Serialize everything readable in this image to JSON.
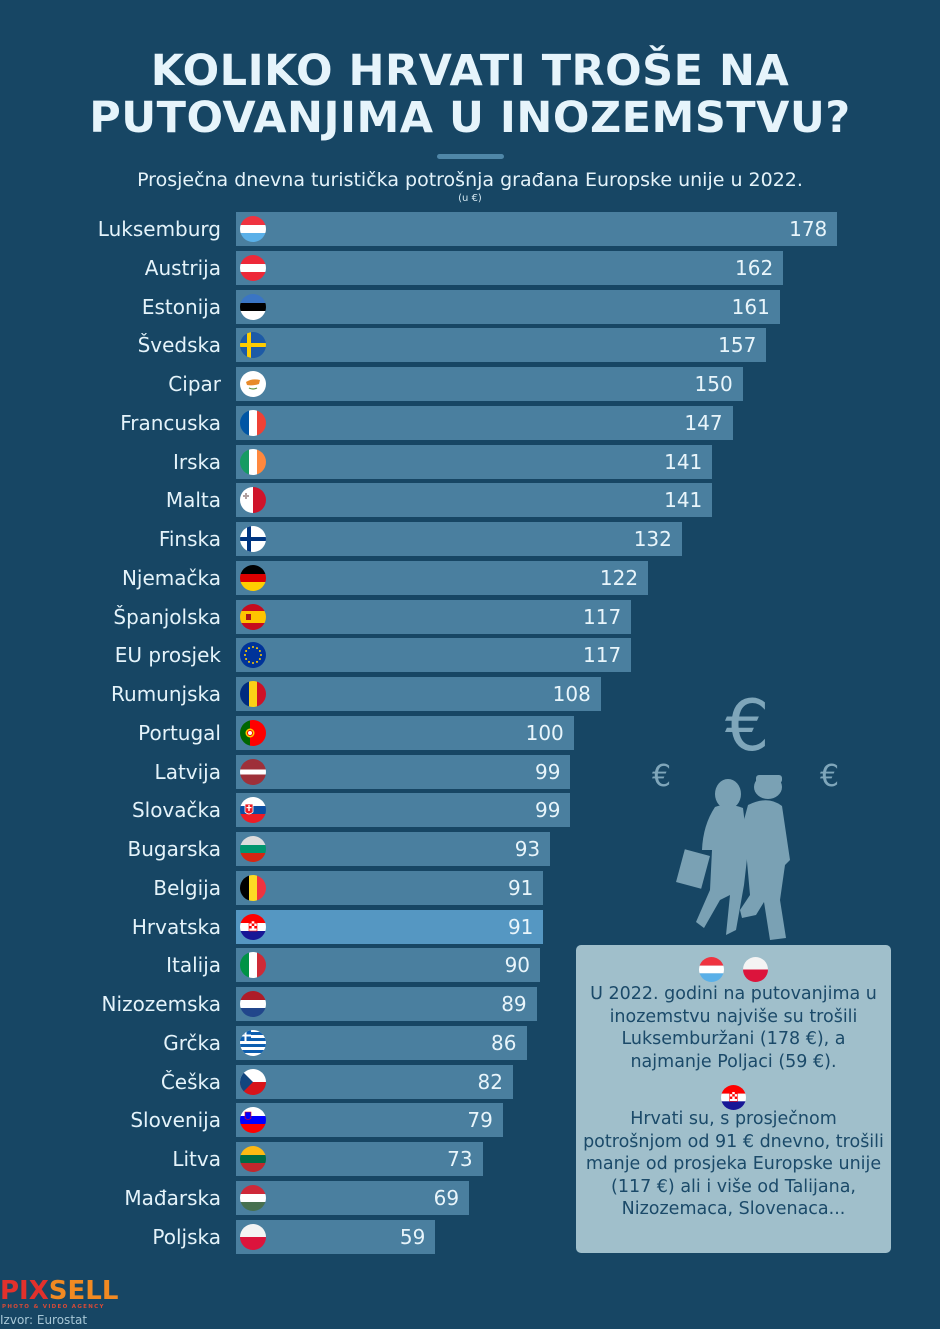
{
  "header": {
    "title_line1": "KOLIKO HRVATI TROŠE NA",
    "title_line2": "PUTOVANJIMA U INOZEMSTVU?",
    "subtitle": "Prosječna dnevna turistička potrošnja građana Europske unije u 2022.",
    "unit": "(u €)"
  },
  "colors": {
    "background": "#174664",
    "bar": "#4a7f9f",
    "bar_highlight": "#5597c2",
    "info_box": "#a0bfcb",
    "info_text": "#1b4a69"
  },
  "chart_data": {
    "type": "bar",
    "orientation": "horizontal",
    "title": "Prosječna dnevna turistička potrošnja građana Europske unije u 2022.",
    "xlabel": "",
    "ylabel": "",
    "unit": "€",
    "xlim": [
      0,
      178
    ],
    "grid": false,
    "highlight": "Hrvatska",
    "categories": [
      "Luksemburg",
      "Austrija",
      "Estonija",
      "Švedska",
      "Cipar",
      "Francuska",
      "Irska",
      "Malta",
      "Finska",
      "Njemačka",
      "Španjolska",
      "EU prosjek",
      "Rumunjska",
      "Portugal",
      "Latvija",
      "Slovačka",
      "Bugarska",
      "Belgija",
      "Hrvatska",
      "Italija",
      "Nizozemska",
      "Grčka",
      "Češka",
      "Slovenija",
      "Litva",
      "Mađarska",
      "Poljska"
    ],
    "values": [
      178,
      162,
      161,
      157,
      150,
      147,
      141,
      141,
      132,
      122,
      117,
      117,
      108,
      100,
      99,
      99,
      93,
      91,
      91,
      90,
      89,
      86,
      82,
      79,
      73,
      69,
      59
    ],
    "flags": [
      "lu",
      "at",
      "ee",
      "se",
      "cy",
      "fr",
      "ie",
      "mt",
      "fi",
      "de",
      "es",
      "eu",
      "ro",
      "pt",
      "lv",
      "sk",
      "bg",
      "be",
      "hr",
      "it",
      "nl",
      "gr",
      "cz",
      "si",
      "lt",
      "hu",
      "pl"
    ]
  },
  "illustration": {
    "euro_symbol": "€",
    "description": "couple-walking-silhouette"
  },
  "info_box": {
    "flags_top": [
      "lu",
      "pl"
    ],
    "text1": "U 2022. godini na putovanjima u inozemstvu  najviše su trošili Luksemburžani (178 €), a najmanje Poljaci (59 €).",
    "flag_middle": "hr",
    "text2": "Hrvati su, s prosječnom potrošnjom od 91 € dnevno, trošili manje od prosjeka Europske unije (117 €) ali i više od Talijana, Nizozemaca, Slovenaca..."
  },
  "footer": {
    "logo_part1": "PIX",
    "logo_part2": "SELL",
    "logo_tagline": "PHOTO & VIDEO AGENCY",
    "source": "Izvor: Eurostat"
  }
}
